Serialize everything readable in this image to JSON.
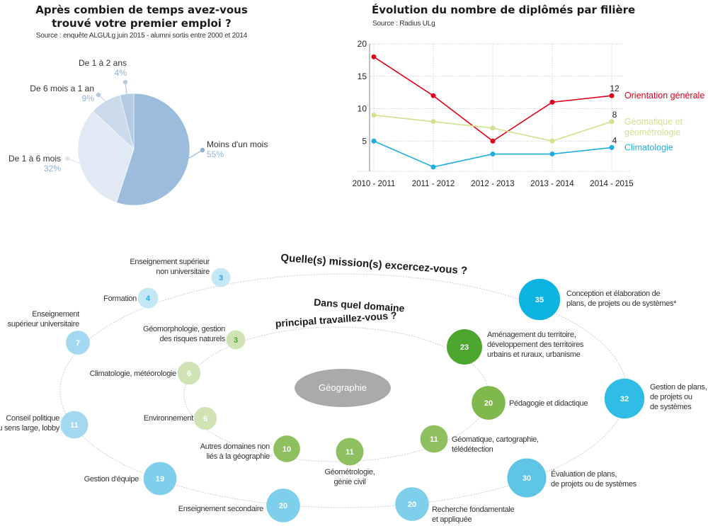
{
  "chart_data": [
    {
      "type": "pie",
      "title": "Après combien de temps avez-vous trouvé votre premier emploi ?",
      "title_lines": [
        "Après combien de temps avez-vous",
        "trouvé votre premier emploi ?"
      ],
      "subtitle": "Source : enquête ALGULg juin 2015 - alumni sortis entre 2000 et 2014",
      "slices": [
        {
          "label": "Moins d'un mois",
          "value": 55,
          "pct_label": "55%",
          "color": "#9bbcdd"
        },
        {
          "label": "De 1 à 6 mois",
          "value": 32,
          "pct_label": "32%",
          "color": "#e1e9f5"
        },
        {
          "label": "De 6 mois a 1 an",
          "value": 9,
          "pct_label": "9%",
          "color": "#ccdbec"
        },
        {
          "label": "De 1 à 2 ans",
          "value": 4,
          "pct_label": "4%",
          "color": "#b4cbe4"
        }
      ],
      "label_color": "#8fb3da"
    },
    {
      "type": "line",
      "title": "Évolution du nombre de diplômés par filière",
      "subtitle": "Source : Radius ULg",
      "categories": [
        "2010 - 2011",
        "2011 - 2012",
        "2012 - 2013",
        "2013 - 2014",
        "2014 - 2015"
      ],
      "ylim": [
        0,
        20
      ],
      "yticks": [
        5,
        10,
        15,
        20
      ],
      "grid": true,
      "legend_position": "right",
      "series": [
        {
          "name": "Orientation générale",
          "values": [
            18,
            12,
            5,
            11,
            12
          ],
          "color": "#e2001a",
          "end_label": "12"
        },
        {
          "name": "Géomatique et géométrologie",
          "name_lines": [
            "Géomatique et",
            "géométrologie"
          ],
          "values": [
            9,
            8,
            7,
            5,
            8
          ],
          "color": "#d3e08e",
          "end_label": "8"
        },
        {
          "name": "Climatologie",
          "values": [
            5,
            1,
            3,
            3,
            4
          ],
          "color": "#1eaee6",
          "end_label": "4"
        }
      ]
    },
    {
      "type": "bubble",
      "title_outer": "Quelle(s) mission(s) excercez-vous ?",
      "title_inner_lines": [
        "Dans quel domaine",
        "principal travaillez-vous ?"
      ],
      "center_label": "Géographie",
      "center_color": "#aaaaaa",
      "missions": [
        {
          "label_lines": [
            "Enseignement supérieur",
            "non universitaire"
          ],
          "value": 3
        },
        {
          "label_lines": [
            "Formation"
          ],
          "value": 4
        },
        {
          "label_lines": [
            "Enseignement",
            "supérieur universitaire"
          ],
          "value": 7
        },
        {
          "label_lines": [
            "Conseil politique",
            "au sens large, lobby"
          ],
          "value": 11
        },
        {
          "label_lines": [
            "Gestion d'équipe"
          ],
          "value": 19
        },
        {
          "label_lines": [
            "Enseignement secondaire"
          ],
          "value": 20
        },
        {
          "label_lines": [
            "Recherche fondamentale",
            "et appliquée"
          ],
          "value": 20
        },
        {
          "label_lines": [
            "Évaluation de plans,",
            "de projets ou de systèmes"
          ],
          "value": 30
        },
        {
          "label_lines": [
            "Gestion de plans,",
            "de projets ou",
            "de systèmes"
          ],
          "value": 32
        },
        {
          "label_lines": [
            "Conception et élaboration de",
            "plans, de projets ou de systèmes*"
          ],
          "value": 35
        }
      ],
      "domains": [
        {
          "label_lines": [
            "Géomorphologie, gestion",
            "des risques naturels"
          ],
          "value": 3
        },
        {
          "label_lines": [
            "Climatologie, météorologie"
          ],
          "value": 6
        },
        {
          "label_lines": [
            "Environnement"
          ],
          "value": 6
        },
        {
          "label_lines": [
            "Autres domaines non",
            "liés à la géographie"
          ],
          "value": 10
        },
        {
          "label_lines": [
            "Géométrologie,",
            "génie civil"
          ],
          "value": 11
        },
        {
          "label_lines": [
            "Géomatique, cartographie,",
            " télédétection"
          ],
          "value": 11
        },
        {
          "label_lines": [
            "Pédagogie et didactique"
          ],
          "value": 20
        },
        {
          "label_lines": [
            "Aménagement du territoire,",
            "développement des territoires",
            "urbains et ruraux, urbanisme"
          ],
          "value": 23
        }
      ],
      "mission_color_light": "#a6daf0",
      "mission_color_dark": "#0db4e2",
      "domain_color_light": "#cfe3b4",
      "domain_color_dark": "#4da72f"
    }
  ]
}
